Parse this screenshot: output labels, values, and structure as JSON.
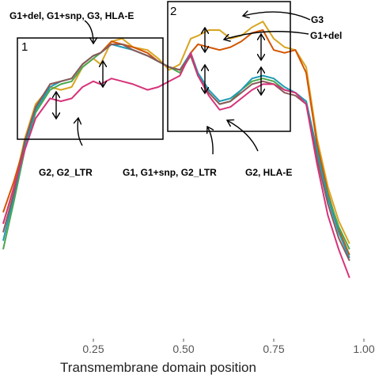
{
  "chart_data": {
    "type": "line",
    "xlabel": "Transmembrane domain position",
    "ylabel": "",
    "xlim": [
      0,
      1.0
    ],
    "xticks": [
      {
        "value": 0.25,
        "label": "0.25"
      },
      {
        "value": 0.5,
        "label": "0.50"
      },
      {
        "value": 0.75,
        "label": "0.75"
      },
      {
        "value": 1.0,
        "label": "1.00"
      }
    ],
    "grid": false,
    "series": [
      {
        "color": "#D9A521",
        "values": [
          [
            0.0,
            0.73
          ],
          [
            0.03,
            0.6
          ],
          [
            0.06,
            0.43
          ],
          [
            0.09,
            0.31
          ],
          [
            0.13,
            0.25
          ],
          [
            0.16,
            0.26
          ],
          [
            0.19,
            0.25
          ],
          [
            0.22,
            0.18
          ],
          [
            0.25,
            0.15
          ],
          [
            0.27,
            0.17
          ],
          [
            0.3,
            0.09
          ],
          [
            0.33,
            0.08
          ],
          [
            0.36,
            0.11
          ],
          [
            0.4,
            0.12
          ],
          [
            0.43,
            0.15
          ],
          [
            0.46,
            0.19
          ],
          [
            0.49,
            0.17
          ],
          [
            0.52,
            0.08
          ],
          [
            0.54,
            0.07
          ],
          [
            0.57,
            0.05
          ],
          [
            0.6,
            0.05
          ],
          [
            0.63,
            0.08
          ],
          [
            0.66,
            0.07
          ],
          [
            0.69,
            0.04
          ],
          [
            0.72,
            0.02
          ],
          [
            0.75,
            0.08
          ],
          [
            0.78,
            0.11
          ],
          [
            0.81,
            0.12
          ],
          [
            0.84,
            0.18
          ],
          [
            0.87,
            0.43
          ],
          [
            0.9,
            0.6
          ],
          [
            0.93,
            0.72
          ],
          [
            0.96,
            0.8
          ]
        ]
      },
      {
        "color": "#D35400",
        "values": [
          [
            0.0,
            0.69
          ],
          [
            0.03,
            0.58
          ],
          [
            0.06,
            0.45
          ],
          [
            0.09,
            0.33
          ],
          [
            0.13,
            0.24
          ],
          [
            0.16,
            0.23
          ],
          [
            0.19,
            0.22
          ],
          [
            0.22,
            0.17
          ],
          [
            0.25,
            0.14
          ],
          [
            0.27,
            0.13
          ],
          [
            0.3,
            0.09
          ],
          [
            0.33,
            0.1
          ],
          [
            0.36,
            0.11
          ],
          [
            0.4,
            0.13
          ],
          [
            0.43,
            0.16
          ],
          [
            0.46,
            0.18
          ],
          [
            0.49,
            0.19
          ],
          [
            0.52,
            0.13
          ],
          [
            0.54,
            0.1
          ],
          [
            0.57,
            0.11
          ],
          [
            0.6,
            0.12
          ],
          [
            0.63,
            0.11
          ],
          [
            0.66,
            0.09
          ],
          [
            0.69,
            0.06
          ],
          [
            0.72,
            0.05
          ],
          [
            0.75,
            0.12
          ],
          [
            0.78,
            0.13
          ],
          [
            0.81,
            0.12
          ],
          [
            0.84,
            0.2
          ],
          [
            0.87,
            0.45
          ],
          [
            0.9,
            0.62
          ],
          [
            0.93,
            0.75
          ],
          [
            0.96,
            0.84
          ]
        ]
      },
      {
        "color": "#4CA64C",
        "values": [
          [
            0.0,
            0.82
          ],
          [
            0.03,
            0.65
          ],
          [
            0.06,
            0.47
          ],
          [
            0.09,
            0.34
          ],
          [
            0.13,
            0.26
          ],
          [
            0.16,
            0.24
          ],
          [
            0.19,
            0.23
          ],
          [
            0.22,
            0.18
          ],
          [
            0.25,
            0.15
          ],
          [
            0.27,
            0.13
          ],
          [
            0.3,
            0.1
          ],
          [
            0.33,
            0.1
          ],
          [
            0.36,
            0.12
          ],
          [
            0.4,
            0.14
          ],
          [
            0.43,
            0.16
          ],
          [
            0.46,
            0.18
          ],
          [
            0.49,
            0.2
          ],
          [
            0.52,
            0.14
          ],
          [
            0.54,
            0.21
          ],
          [
            0.57,
            0.27
          ],
          [
            0.6,
            0.31
          ],
          [
            0.63,
            0.3
          ],
          [
            0.66,
            0.26
          ],
          [
            0.69,
            0.23
          ],
          [
            0.72,
            0.22
          ],
          [
            0.75,
            0.23
          ],
          [
            0.78,
            0.26
          ],
          [
            0.81,
            0.27
          ],
          [
            0.84,
            0.3
          ],
          [
            0.87,
            0.48
          ],
          [
            0.9,
            0.63
          ],
          [
            0.93,
            0.74
          ],
          [
            0.96,
            0.82
          ]
        ]
      },
      {
        "color": "#1F9BB5",
        "values": [
          [
            0.0,
            0.79
          ],
          [
            0.03,
            0.63
          ],
          [
            0.06,
            0.46
          ],
          [
            0.09,
            0.33
          ],
          [
            0.13,
            0.25
          ],
          [
            0.16,
            0.23
          ],
          [
            0.19,
            0.22
          ],
          [
            0.22,
            0.17
          ],
          [
            0.25,
            0.14
          ],
          [
            0.27,
            0.13
          ],
          [
            0.3,
            0.1
          ],
          [
            0.33,
            0.11
          ],
          [
            0.36,
            0.12
          ],
          [
            0.4,
            0.14
          ],
          [
            0.43,
            0.16
          ],
          [
            0.46,
            0.18
          ],
          [
            0.49,
            0.19
          ],
          [
            0.52,
            0.13
          ],
          [
            0.54,
            0.2
          ],
          [
            0.57,
            0.26
          ],
          [
            0.6,
            0.3
          ],
          [
            0.63,
            0.29
          ],
          [
            0.66,
            0.26
          ],
          [
            0.69,
            0.22
          ],
          [
            0.72,
            0.21
          ],
          [
            0.75,
            0.22
          ],
          [
            0.78,
            0.25
          ],
          [
            0.81,
            0.27
          ],
          [
            0.84,
            0.3
          ],
          [
            0.87,
            0.47
          ],
          [
            0.9,
            0.64
          ],
          [
            0.93,
            0.76
          ],
          [
            0.96,
            0.85
          ]
        ]
      },
      {
        "color": "#8A5A5A",
        "values": [
          [
            0.0,
            0.76
          ],
          [
            0.03,
            0.62
          ],
          [
            0.06,
            0.44
          ],
          [
            0.09,
            0.32
          ],
          [
            0.13,
            0.24
          ],
          [
            0.16,
            0.23
          ],
          [
            0.19,
            0.22
          ],
          [
            0.22,
            0.17
          ],
          [
            0.25,
            0.14
          ],
          [
            0.27,
            0.13
          ],
          [
            0.3,
            0.1
          ],
          [
            0.33,
            0.1
          ],
          [
            0.36,
            0.12
          ],
          [
            0.4,
            0.14
          ],
          [
            0.43,
            0.16
          ],
          [
            0.46,
            0.18
          ],
          [
            0.49,
            0.19
          ],
          [
            0.52,
            0.14
          ],
          [
            0.54,
            0.21
          ],
          [
            0.57,
            0.27
          ],
          [
            0.6,
            0.31
          ],
          [
            0.63,
            0.3
          ],
          [
            0.66,
            0.27
          ],
          [
            0.69,
            0.24
          ],
          [
            0.72,
            0.23
          ],
          [
            0.75,
            0.24
          ],
          [
            0.78,
            0.27
          ],
          [
            0.81,
            0.28
          ],
          [
            0.84,
            0.31
          ],
          [
            0.87,
            0.5
          ],
          [
            0.9,
            0.66
          ],
          [
            0.93,
            0.78
          ],
          [
            0.96,
            0.86
          ]
        ]
      },
      {
        "color": "#D6337A",
        "values": [
          [
            0.0,
            0.73
          ],
          [
            0.03,
            0.6
          ],
          [
            0.06,
            0.47
          ],
          [
            0.09,
            0.36
          ],
          [
            0.13,
            0.29
          ],
          [
            0.16,
            0.3
          ],
          [
            0.19,
            0.29
          ],
          [
            0.22,
            0.25
          ],
          [
            0.25,
            0.23
          ],
          [
            0.27,
            0.24
          ],
          [
            0.3,
            0.22
          ],
          [
            0.33,
            0.23
          ],
          [
            0.36,
            0.24
          ],
          [
            0.4,
            0.26
          ],
          [
            0.43,
            0.25
          ],
          [
            0.46,
            0.23
          ],
          [
            0.49,
            0.21
          ],
          [
            0.52,
            0.13
          ],
          [
            0.54,
            0.21
          ],
          [
            0.57,
            0.28
          ],
          [
            0.6,
            0.33
          ],
          [
            0.63,
            0.32
          ],
          [
            0.66,
            0.29
          ],
          [
            0.69,
            0.26
          ],
          [
            0.72,
            0.24
          ],
          [
            0.75,
            0.24
          ],
          [
            0.78,
            0.26
          ],
          [
            0.81,
            0.27
          ],
          [
            0.84,
            0.31
          ],
          [
            0.87,
            0.52
          ],
          [
            0.9,
            0.7
          ],
          [
            0.93,
            0.82
          ],
          [
            0.96,
            0.92
          ]
        ]
      }
    ],
    "annotations": [
      {
        "id": "a1",
        "text": "G1+del, G1+snp, G3, HLA-E"
      },
      {
        "id": "a2",
        "text": "G2, G2_LTR"
      },
      {
        "id": "a3",
        "text": "G1, G1+snp, G2_LTR"
      },
      {
        "id": "a4",
        "text": "G2, HLA-E"
      },
      {
        "id": "a5",
        "text": "G3"
      },
      {
        "id": "a6",
        "text": "G1+del"
      }
    ],
    "boxes": [
      {
        "label": "1"
      },
      {
        "label": "2"
      }
    ]
  }
}
